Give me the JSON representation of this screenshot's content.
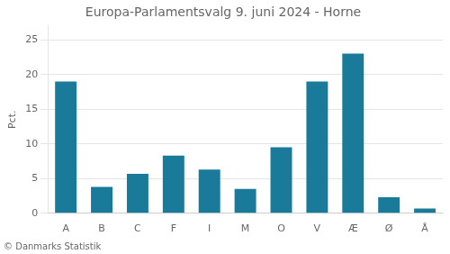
{
  "chart_data": {
    "type": "bar",
    "title": "Europa-Parlamentsvalg 9. juni 2024 - Horne",
    "categories": [
      "A",
      "B",
      "C",
      "F",
      "I",
      "M",
      "O",
      "V",
      "Æ",
      "Ø",
      "Å"
    ],
    "values": [
      19.0,
      3.8,
      5.7,
      8.3,
      6.3,
      3.5,
      9.5,
      19.0,
      23.0,
      2.3,
      0.7
    ],
    "color": "#1a7a9a",
    "ylabel": "Pct.",
    "ylim": [
      0,
      27
    ],
    "yticks": [
      0,
      5,
      10,
      15,
      20,
      25
    ],
    "grid": true,
    "annotations": [
      "© Danmarks Statistik"
    ]
  }
}
